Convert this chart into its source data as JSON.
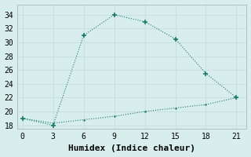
{
  "line1_x": [
    0,
    3,
    6,
    9,
    12,
    15,
    18,
    21
  ],
  "line1_y": [
    19,
    18,
    31,
    34,
    33,
    30.5,
    25.5,
    22
  ],
  "line2_x": [
    0,
    3,
    6,
    9,
    12,
    15,
    18,
    21
  ],
  "line2_y": [
    19,
    18.3,
    18.8,
    19.3,
    20.0,
    20.5,
    21.0,
    22
  ],
  "line_color": "#1a7a6e",
  "bg_color": "#d8eeec",
  "grid_color": "#c8e0de",
  "xlabel": "Humidex (Indice chaleur)",
  "xlabel_fontsize": 8,
  "xlim": [
    -0.5,
    22
  ],
  "ylim": [
    17.5,
    35.5
  ],
  "xticks": [
    0,
    3,
    6,
    9,
    12,
    15,
    18,
    21
  ],
  "yticks": [
    18,
    20,
    22,
    24,
    26,
    28,
    30,
    32,
    34
  ],
  "tick_fontsize": 7
}
